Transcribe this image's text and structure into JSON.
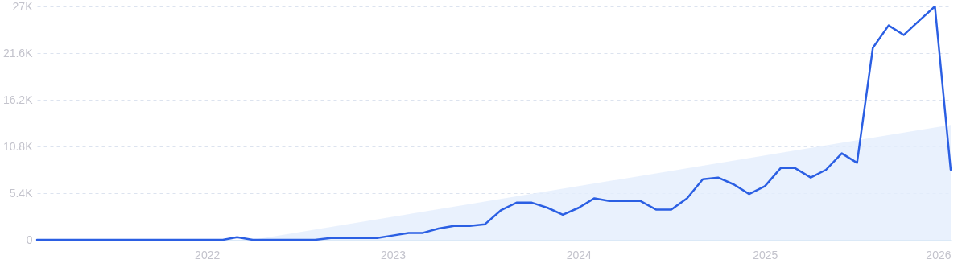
{
  "chart_data": {
    "type": "line",
    "xlim": [
      "2021-02",
      "2026-01"
    ],
    "xticks": [
      "2022",
      "2023",
      "2024",
      "2025",
      "2026"
    ],
    "ylim": [
      0,
      27000
    ],
    "yticks": [
      0,
      {
        "value": 5400,
        "label": "5.4K"
      },
      {
        "value": 10800,
        "label": "10.8K"
      },
      {
        "value": 16200,
        "label": "16.2K"
      },
      {
        "value": 21600,
        "label": "21.6K"
      },
      {
        "value": 27000,
        "label": "27K"
      }
    ],
    "grid": "y",
    "series": [
      {
        "type": "area",
        "color": "#e3edfc",
        "x": [
          "2022-04",
          "2026-01"
        ],
        "values": [
          0,
          13300
        ]
      },
      {
        "color": "#2b5fe3",
        "x": [
          "2021-02",
          "2021-03",
          "2021-04",
          "2021-05",
          "2021-06",
          "2021-07",
          "2021-08",
          "2021-09",
          "2021-10",
          "2021-11",
          "2021-12",
          "2022-01",
          "2022-02",
          "2022-03",
          "2022-04",
          "2022-05",
          "2022-06",
          "2022-07",
          "2022-08",
          "2022-09",
          "2022-10",
          "2022-11",
          "2022-12",
          "2023-01",
          "2023-02",
          "2023-03",
          "2023-04",
          "2023-05",
          "2023-06",
          "2023-07",
          "2023-08",
          "2023-09",
          "2023-10",
          "2023-11",
          "2023-12",
          "2024-01",
          "2024-02",
          "2024-03",
          "2024-04",
          "2024-05",
          "2024-06",
          "2024-07",
          "2024-08",
          "2024-09",
          "2024-10",
          "2024-11",
          "2024-12",
          "2025-01",
          "2025-02",
          "2025-03",
          "2025-04",
          "2025-05",
          "2025-06",
          "2025-07",
          "2025-08",
          "2025-09",
          "2025-10",
          "2025-11",
          "2025-12",
          "2026-01"
        ],
        "values": [
          0,
          0,
          0,
          0,
          0,
          0,
          0,
          0,
          0,
          0,
          0,
          0,
          0,
          300,
          0,
          0,
          0,
          0,
          0,
          200,
          200,
          200,
          200,
          500,
          800,
          800,
          1300,
          1600,
          1600,
          1800,
          3400,
          4300,
          4300,
          3700,
          2900,
          3700,
          4800,
          4500,
          4500,
          4500,
          3500,
          3500,
          4800,
          7000,
          7200,
          6400,
          5300,
          6200,
          8300,
          8300,
          7200,
          8100,
          10000,
          8900,
          22200,
          24800,
          23700,
          25400,
          27000,
          8100
        ]
      }
    ]
  }
}
